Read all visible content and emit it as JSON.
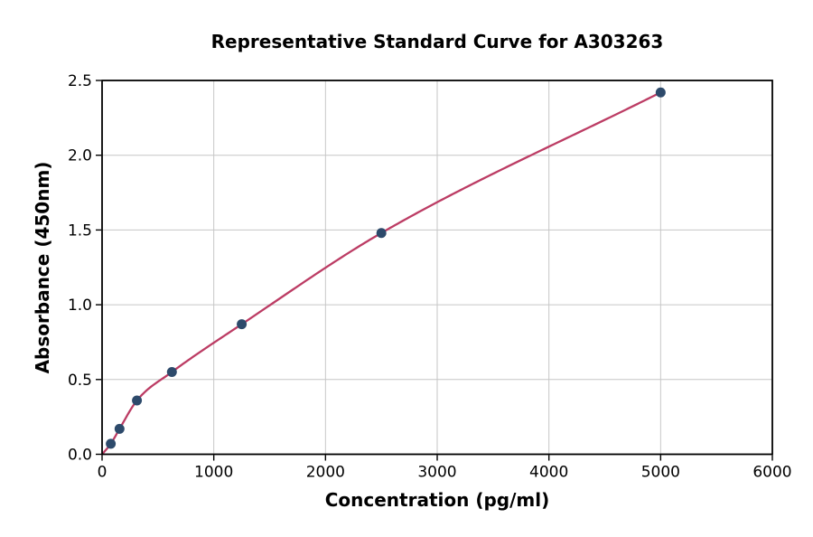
{
  "chart_data": {
    "type": "scatter",
    "title": "Representative Standard Curve for A303263",
    "xlabel": "Concentration (pg/ml)",
    "ylabel": "Absorbance (450nm)",
    "xlim": [
      0,
      6000
    ],
    "ylim": [
      0.0,
      2.5
    ],
    "x_ticks": [
      0,
      1000,
      2000,
      3000,
      4000,
      5000,
      6000
    ],
    "x_tick_labels": [
      "0",
      "1000",
      "2000",
      "3000",
      "4000",
      "5000",
      "6000"
    ],
    "y_ticks": [
      0.0,
      0.5,
      1.0,
      1.5,
      2.0,
      2.5
    ],
    "y_tick_labels": [
      "0.0",
      "0.5",
      "1.0",
      "1.5",
      "2.0",
      "2.5"
    ],
    "grid": true,
    "legend": "none",
    "points": {
      "x": [
        78,
        156,
        312,
        625,
        1250,
        2500,
        5000
      ],
      "y": [
        0.07,
        0.17,
        0.36,
        0.55,
        0.87,
        1.48,
        2.42
      ]
    },
    "fit_curve": {
      "description": "smooth fitted standard curve through origin and all data points",
      "anchors_x": [
        0,
        78,
        156,
        312,
        625,
        1250,
        2500,
        5000
      ],
      "anchors_y": [
        0.0,
        0.07,
        0.17,
        0.36,
        0.55,
        0.87,
        1.48,
        2.42
      ]
    },
    "colors": {
      "curve": "#bc3c64",
      "marker": "#2d4a6b",
      "grid": "#c6c6c6",
      "spine": "#000000",
      "text": "#000000",
      "background": "#ffffff"
    }
  }
}
